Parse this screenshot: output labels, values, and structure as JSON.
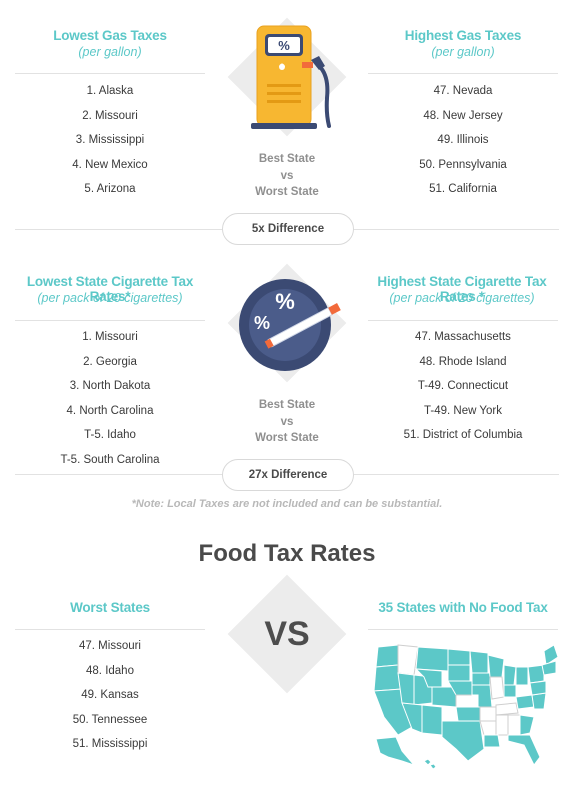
{
  "gas": {
    "low_title": "Lowest Gas Taxes",
    "low_sub": "(per gallon)",
    "high_title": "Highest Gas Taxes",
    "high_sub": "(per gallon)",
    "low_list": [
      "1. Alaska",
      "2. Missouri",
      "3. Mississippi",
      "4. New Mexico",
      "5. Arizona"
    ],
    "high_list": [
      "47. Nevada",
      "48. New Jersey",
      "49. Illinois",
      "50. Pennsylvania",
      "51. California"
    ],
    "badge": "%",
    "center_line1": "Best State",
    "center_line2": "vs",
    "center_line3": "Worst State",
    "difference": "5x Difference"
  },
  "cigarette": {
    "low_title": "Lowest State Cigarette Tax Rates*",
    "low_sub": "(per pack of 20 cigarettes)",
    "high_title": "Highest State Cigarette Tax Rates *",
    "high_sub": "(per pack of 20 cigarettes)",
    "low_list": [
      "1. Missouri",
      "2. Georgia",
      "3. North Dakota",
      "4. North Carolina",
      "T-5. Idaho",
      "T-5. South Carolina"
    ],
    "high_list": [
      "47. Massachusetts",
      "48. Rhode Island",
      "T-49. Connecticut",
      "T-49. New York",
      "51. District of Columbia"
    ],
    "center_line1": "Best State",
    "center_line2": "vs",
    "center_line3": "Worst State",
    "difference": "27x Difference"
  },
  "note": "*Note: Local Taxes are not included and can be substantial.",
  "food": {
    "title": "Food Tax Rates",
    "worst_title": "Worst States",
    "worst_list": [
      "47. Missouri",
      "48. Idaho",
      "49. Kansas",
      "50. Tennessee",
      "51. Mississippi"
    ],
    "vs": "VS",
    "no_tax_title": "35 States with No Food Tax"
  },
  "colors": {
    "teal": "#5cc8c8",
    "pump_yellow": "#f7b731",
    "pump_navy": "#3b4a73",
    "cig_badge": "#3b4a73",
    "cig_orange": "#f26a3b"
  }
}
